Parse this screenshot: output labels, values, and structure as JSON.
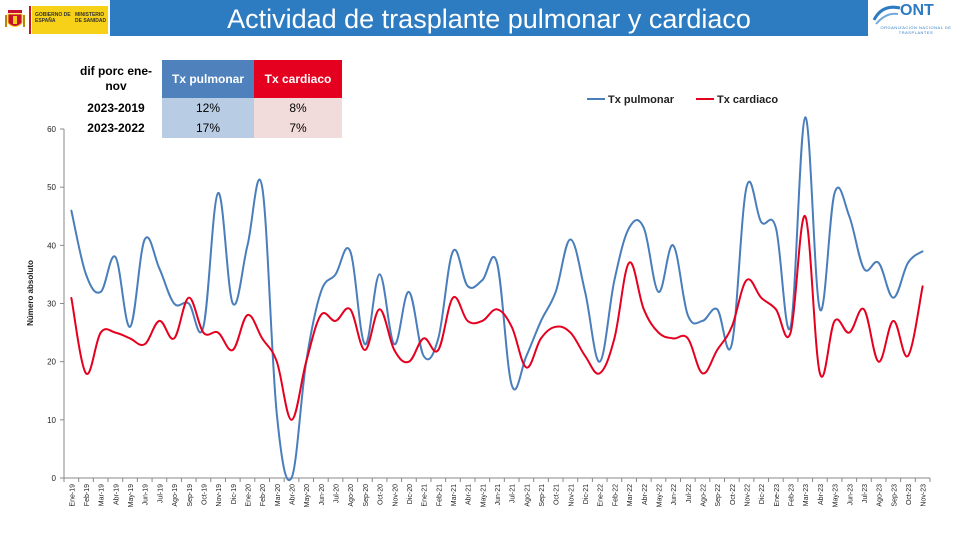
{
  "header": {
    "title": "Actividad de trasplante pulmonar y cardiaco",
    "gov_logo_text_1": "GOBIERNO DE ESPAÑA",
    "gov_logo_text_2": "MINISTERIO DE SANIDAD",
    "ont_logo_name": "ONT",
    "ont_logo_subtitle": "ORGANIZACIÓN NACIONAL DE TRASPLANTES"
  },
  "table": {
    "corner_label": "dif porc ene-nov",
    "col_pulmonar": "Tx pulmonar",
    "col_cardiaco": "Tx cardiaco",
    "rows": [
      {
        "label": "2023-2019",
        "pulmonar": "12%",
        "cardiaco": "8%"
      },
      {
        "label": "2023-2022",
        "pulmonar": "17%",
        "cardiaco": "7%"
      }
    ]
  },
  "colors": {
    "header_band": "#2d7bc1",
    "pulmonar": "#4a7ebb",
    "cardiaco": "#e5001f"
  },
  "chart_data": {
    "type": "line",
    "title": "",
    "xlabel": "",
    "ylabel": "Número absoluto",
    "ylim": [
      0,
      60
    ],
    "yticks": [
      0,
      10,
      20,
      30,
      40,
      50,
      60
    ],
    "grid": false,
    "legend_position": "top-right",
    "categories": [
      "Ene-19",
      "Feb-19",
      "Mar-19",
      "Abr-19",
      "May-19",
      "Jun-19",
      "Jul-19",
      "Ago-19",
      "Sep-19",
      "Oct-19",
      "Nov-19",
      "Dic-19",
      "Ene-20",
      "Feb-20",
      "Mar-20",
      "Abr-20",
      "May-20",
      "Jun-20",
      "Jul-20",
      "Ago-20",
      "Sep-20",
      "Oct-20",
      "Nov-20",
      "Dic-20",
      "Ene-21",
      "Feb-21",
      "Mar-21",
      "Abr-21",
      "May-21",
      "Jun-21",
      "Jul-21",
      "Ago-21",
      "Sep-21",
      "Oct-21",
      "Nov-21",
      "Dic-21",
      "Ene-22",
      "Feb-22",
      "Mar-22",
      "Abr-22",
      "May-22",
      "Jun-22",
      "Jul-22",
      "Ago-22",
      "Sep-22",
      "Oct-22",
      "Nov-22",
      "Dic-22",
      "Ene-23",
      "Feb-23",
      "Mar-23",
      "Abr-23",
      "May-23",
      "Jun-23",
      "Jul-23",
      "Ago-23",
      "Sep-23",
      "Oct-23",
      "Nov-23"
    ],
    "series": [
      {
        "name": "Tx pulmonar",
        "color": "#4a7ebb",
        "values": [
          46,
          35,
          32,
          38,
          26,
          41,
          36,
          30,
          30,
          26,
          49,
          30,
          40,
          50,
          11,
          0,
          20,
          32,
          35,
          39,
          23,
          35,
          23,
          32,
          21,
          24,
          39,
          33,
          34,
          37,
          16,
          21,
          27,
          32,
          41,
          32,
          20,
          34,
          43,
          43,
          32,
          40,
          28,
          27,
          29,
          23,
          50,
          44,
          43,
          26,
          62,
          29,
          49,
          45,
          36,
          37,
          31,
          37,
          39
        ]
      },
      {
        "name": "Tx cardiaco",
        "color": "#e5001f",
        "values": [
          31,
          18,
          25,
          25,
          24,
          23,
          27,
          24,
          31,
          25,
          25,
          22,
          28,
          24,
          20,
          10,
          20,
          28,
          27,
          29,
          22,
          29,
          22,
          20,
          24,
          22,
          31,
          27,
          27,
          29,
          26,
          19,
          24,
          26,
          25,
          21,
          18,
          24,
          37,
          29,
          25,
          24,
          24,
          18,
          22,
          26,
          34,
          31,
          29,
          25,
          45,
          18,
          27,
          25,
          29,
          20,
          27,
          21,
          33
        ]
      }
    ]
  }
}
